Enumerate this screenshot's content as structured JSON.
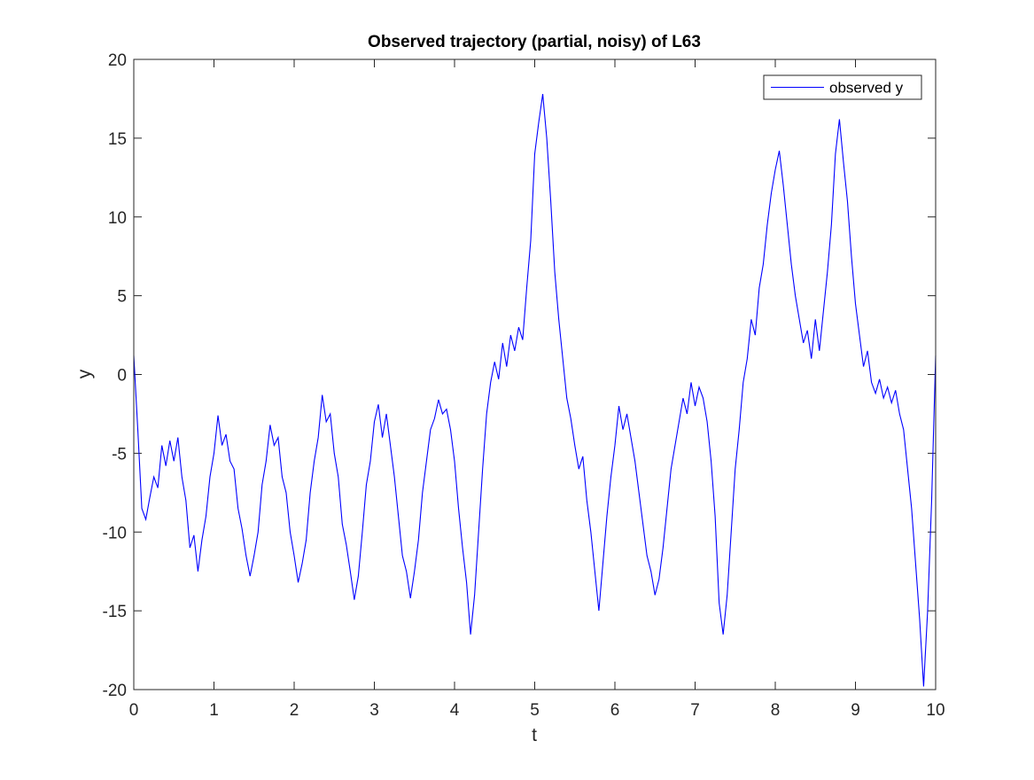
{
  "chart_data": {
    "type": "line",
    "title": "Observed trajectory (partial, noisy) of L63",
    "x_label": "t",
    "y_label": "y",
    "x": [
      0,
      0.05,
      0.1,
      0.15,
      0.2,
      0.25,
      0.3,
      0.35,
      0.4,
      0.45,
      0.5,
      0.55,
      0.6,
      0.65,
      0.7,
      0.75,
      0.8,
      0.85,
      0.9,
      0.95,
      1,
      1.05,
      1.1,
      1.15,
      1.2,
      1.25,
      1.3,
      1.35,
      1.4,
      1.45,
      1.5,
      1.55,
      1.6,
      1.65,
      1.7,
      1.75,
      1.8,
      1.85,
      1.9,
      1.95,
      2,
      2.05,
      2.1,
      2.15,
      2.2,
      2.25,
      2.3,
      2.35,
      2.4,
      2.45,
      2.5,
      2.55,
      2.6,
      2.65,
      2.7,
      2.75,
      2.8,
      2.85,
      2.9,
      2.95,
      3,
      3.05,
      3.1,
      3.15,
      3.2,
      3.25,
      3.3,
      3.35,
      3.4,
      3.45,
      3.5,
      3.55,
      3.6,
      3.65,
      3.7,
      3.75,
      3.8,
      3.85,
      3.9,
      3.95,
      4,
      4.05,
      4.1,
      4.15,
      4.2,
      4.25,
      4.3,
      4.35,
      4.4,
      4.45,
      4.5,
      4.55,
      4.6,
      4.65,
      4.7,
      4.75,
      4.8,
      4.85,
      4.9,
      4.95,
      5,
      5.05,
      5.1,
      5.15,
      5.2,
      5.25,
      5.3,
      5.35,
      5.4,
      5.45,
      5.5,
      5.55,
      5.6,
      5.65,
      5.7,
      5.75,
      5.8,
      5.85,
      5.9,
      5.95,
      6,
      6.05,
      6.1,
      6.15,
      6.2,
      6.25,
      6.3,
      6.35,
      6.4,
      6.45,
      6.5,
      6.55,
      6.6,
      6.65,
      6.7,
      6.75,
      6.8,
      6.85,
      6.9,
      6.95,
      7,
      7.05,
      7.1,
      7.15,
      7.2,
      7.25,
      7.3,
      7.35,
      7.4,
      7.45,
      7.5,
      7.55,
      7.6,
      7.65,
      7.7,
      7.75,
      7.8,
      7.85,
      7.9,
      7.95,
      8,
      8.05,
      8.1,
      8.15,
      8.2,
      8.25,
      8.3,
      8.35,
      8.4,
      8.45,
      8.5,
      8.55,
      8.6,
      8.65,
      8.7,
      8.75,
      8.8,
      8.85,
      8.9,
      8.95,
      9,
      9.05,
      9.1,
      9.15,
      9.2,
      9.25,
      9.3,
      9.35,
      9.4,
      9.45,
      9.5,
      9.55,
      9.6,
      9.65,
      9.7,
      9.75,
      9.8,
      9.85,
      9.9,
      9.95,
      10
    ],
    "series": [
      {
        "name": "observed y",
        "color": "#0000ff",
        "values": [
          1.2,
          -3.5,
          -8.5,
          -9.2,
          -7.8,
          -6.5,
          -7.2,
          -4.5,
          -5.8,
          -4.2,
          -5.5,
          -4.0,
          -6.5,
          -8.0,
          -11.0,
          -10.2,
          -12.5,
          -10.5,
          -9.0,
          -6.5,
          -5.0,
          -2.6,
          -4.5,
          -3.8,
          -5.5,
          -6.0,
          -8.5,
          -9.8,
          -11.5,
          -12.8,
          -11.5,
          -10.0,
          -7.0,
          -5.5,
          -3.2,
          -4.5,
          -4.0,
          -6.5,
          -7.5,
          -10.0,
          -11.5,
          -13.2,
          -12.0,
          -10.5,
          -7.5,
          -5.5,
          -4.0,
          -1.3,
          -3.0,
          -2.5,
          -5.0,
          -6.5,
          -9.5,
          -10.8,
          -12.5,
          -14.3,
          -12.8,
          -10.0,
          -7.0,
          -5.5,
          -3.0,
          -1.9,
          -4.0,
          -2.5,
          -4.5,
          -6.5,
          -9.0,
          -11.5,
          -12.5,
          -14.2,
          -12.5,
          -10.5,
          -7.5,
          -5.5,
          -3.5,
          -2.8,
          -1.6,
          -2.5,
          -2.2,
          -3.5,
          -5.5,
          -8.5,
          -11.0,
          -13.2,
          -16.5,
          -14.0,
          -10.0,
          -6.0,
          -2.5,
          -0.5,
          0.8,
          -0.3,
          2.0,
          0.5,
          2.5,
          1.5,
          3.0,
          2.2,
          5.5,
          8.5,
          14.0,
          16.0,
          17.8,
          15.0,
          11.0,
          6.5,
          3.5,
          1.0,
          -1.5,
          -2.8,
          -4.5,
          -6.0,
          -5.2,
          -8.0,
          -10.0,
          -12.5,
          -15.0,
          -12.0,
          -9.0,
          -6.5,
          -4.5,
          -2.0,
          -3.5,
          -2.5,
          -4.0,
          -5.5,
          -7.5,
          -9.5,
          -11.5,
          -12.5,
          -14.0,
          -13.0,
          -11.0,
          -8.5,
          -6.0,
          -4.5,
          -3.0,
          -1.5,
          -2.5,
          -0.5,
          -2.0,
          -0.8,
          -1.5,
          -3.0,
          -5.5,
          -9.0,
          -14.5,
          -16.5,
          -14.0,
          -10.0,
          -6.0,
          -3.5,
          -0.5,
          1.0,
          3.5,
          2.5,
          5.5,
          7.0,
          9.5,
          11.5,
          13.0,
          14.2,
          12.0,
          9.5,
          7.0,
          5.0,
          3.5,
          2.0,
          2.8,
          1.0,
          3.5,
          1.5,
          4.0,
          6.5,
          9.5,
          14.0,
          16.2,
          13.5,
          11.0,
          7.5,
          4.5,
          2.5,
          0.5,
          1.5,
          -0.5,
          -1.2,
          -0.3,
          -1.5,
          -0.8,
          -1.8,
          -1.0,
          -2.5,
          -3.5,
          -6.0,
          -8.5,
          -12.0,
          -15.5,
          -19.8,
          -15.0,
          -8.0,
          1.2
        ]
      }
    ],
    "xlim": [
      0,
      10
    ],
    "xticks": [
      0,
      1,
      2,
      3,
      4,
      5,
      6,
      7,
      8,
      9,
      10
    ],
    "ylim": [
      -20,
      20
    ],
    "yticks": [
      -20,
      -15,
      -10,
      -5,
      0,
      5,
      10,
      15,
      20
    ],
    "legend": "upper right"
  }
}
